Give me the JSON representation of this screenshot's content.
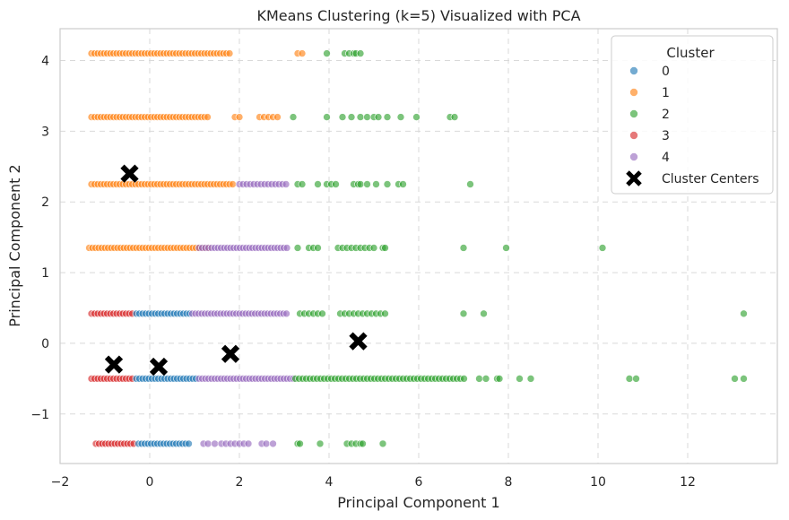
{
  "chart_data": {
    "type": "scatter",
    "title": "KMeans Clustering (k=5) Visualized with PCA",
    "xlabel": "Principal Component 1",
    "ylabel": "Principal Component 2",
    "xlim": [
      -2,
      14
    ],
    "ylim": [
      -1.7,
      4.45
    ],
    "x_ticks": [
      -2,
      0,
      2,
      4,
      6,
      8,
      10,
      12
    ],
    "x_tick_labels": [
      "−2",
      "0",
      "2",
      "4",
      "6",
      "8",
      "10",
      "12"
    ],
    "y_ticks": [
      -1,
      0,
      1,
      2,
      3,
      4
    ],
    "y_tick_labels": [
      "−1",
      "0",
      "1",
      "2",
      "3",
      "4"
    ],
    "grid": true,
    "legend": {
      "title": "Cluster",
      "position": "top-right",
      "entries": [
        {
          "label": "0",
          "color": "#1f77b4",
          "marker": "circle"
        },
        {
          "label": "1",
          "color": "#ff7f0e",
          "marker": "circle"
        },
        {
          "label": "2",
          "color": "#2ca02c",
          "marker": "circle"
        },
        {
          "label": "3",
          "color": "#d62728",
          "marker": "circle"
        },
        {
          "label": "4",
          "color": "#9467bd",
          "marker": "circle"
        },
        {
          "label": "Cluster Centers",
          "color": "#000000",
          "marker": "x"
        }
      ]
    },
    "bands": [
      {
        "y": 4.1,
        "segments": [
          {
            "cluster": 1,
            "x0": -1.3,
            "x1": 1.8,
            "step": 0.07
          },
          {
            "cluster": 1,
            "xs": [
              3.3,
              3.4
            ]
          },
          {
            "cluster": 2,
            "xs": [
              3.95,
              4.35,
              4.45,
              4.55,
              4.6,
              4.7
            ]
          }
        ]
      },
      {
        "y": 3.2,
        "segments": [
          {
            "cluster": 1,
            "x0": -1.3,
            "x1": 1.3,
            "step": 0.07
          },
          {
            "cluster": 1,
            "xs": [
              1.9,
              2.0,
              2.45,
              2.55,
              2.65,
              2.75,
              2.85
            ]
          },
          {
            "cluster": 2,
            "xs": [
              3.2,
              3.95,
              4.3,
              4.5,
              4.7,
              4.85,
              5.0,
              5.1,
              5.3,
              5.6,
              5.95,
              6.7,
              6.8
            ]
          }
        ]
      },
      {
        "y": 2.25,
        "segments": [
          {
            "cluster": 1,
            "x0": -1.3,
            "x1": 1.85,
            "step": 0.07
          },
          {
            "cluster": 4,
            "x0": 2.0,
            "x1": 3.1,
            "step": 0.08
          },
          {
            "cluster": 2,
            "xs": [
              3.3,
              3.4,
              3.75,
              3.95,
              4.05,
              4.15,
              4.55,
              4.65,
              4.7,
              4.85,
              5.05,
              5.3,
              5.55,
              5.65,
              7.15
            ]
          }
        ]
      },
      {
        "y": 1.35,
        "segments": [
          {
            "cluster": 1,
            "x0": -1.35,
            "x1": 1.35,
            "step": 0.07
          },
          {
            "cluster": 4,
            "x0": 1.1,
            "x1": 3.1,
            "step": 0.07
          },
          {
            "cluster": 2,
            "xs": [
              3.3,
              3.55,
              3.65,
              3.75,
              4.2,
              4.3,
              4.4,
              4.5,
              4.6,
              4.7,
              4.8,
              4.9,
              5.0,
              5.2,
              5.25,
              7.0,
              7.95,
              10.1
            ]
          }
        ]
      },
      {
        "y": 0.42,
        "segments": [
          {
            "cluster": 3,
            "x0": -1.3,
            "x1": -0.35,
            "step": 0.07
          },
          {
            "cluster": 0,
            "x0": -0.3,
            "x1": 0.9,
            "step": 0.07
          },
          {
            "cluster": 4,
            "x0": 0.95,
            "x1": 3.1,
            "step": 0.07
          },
          {
            "cluster": 2,
            "xs": [
              3.35,
              3.45,
              3.55,
              3.65,
              3.75,
              3.85,
              4.25,
              4.35,
              4.45,
              4.55,
              4.65,
              4.75,
              4.85,
              4.95,
              5.05,
              5.15,
              5.25,
              7.0,
              7.45,
              13.25
            ]
          }
        ]
      },
      {
        "y": -0.5,
        "segments": [
          {
            "cluster": 3,
            "x0": -1.3,
            "x1": -0.35,
            "step": 0.07
          },
          {
            "cluster": 0,
            "x0": -0.3,
            "x1": 1.05,
            "step": 0.07
          },
          {
            "cluster": 4,
            "x0": 1.1,
            "x1": 3.25,
            "step": 0.07
          },
          {
            "cluster": 2,
            "x0": 3.25,
            "x1": 7.05,
            "step": 0.08
          },
          {
            "cluster": 2,
            "xs": [
              7.35,
              7.5,
              7.75,
              7.8,
              8.25,
              8.5,
              10.7,
              10.85,
              13.05,
              13.25
            ]
          }
        ]
      },
      {
        "y": -1.42,
        "segments": [
          {
            "cluster": 3,
            "x0": -1.2,
            "x1": -0.3,
            "step": 0.07
          },
          {
            "cluster": 0,
            "x0": -0.25,
            "x1": 0.9,
            "step": 0.07
          },
          {
            "cluster": 4,
            "xs": [
              1.2,
              1.3,
              1.45,
              1.6,
              1.7,
              1.8,
              1.9,
              2.0,
              2.1,
              2.2,
              2.5,
              2.6,
              2.75
            ]
          },
          {
            "cluster": 2,
            "xs": [
              3.3,
              3.35,
              3.8,
              4.4,
              4.5,
              4.6,
              4.7,
              4.75,
              5.2
            ]
          }
        ]
      }
    ],
    "centers": [
      {
        "x": -0.45,
        "y": 2.4
      },
      {
        "x": -0.8,
        "y": -0.3
      },
      {
        "x": 0.2,
        "y": -0.33
      },
      {
        "x": 1.8,
        "y": -0.15
      },
      {
        "x": 4.65,
        "y": 0.03
      }
    ]
  }
}
